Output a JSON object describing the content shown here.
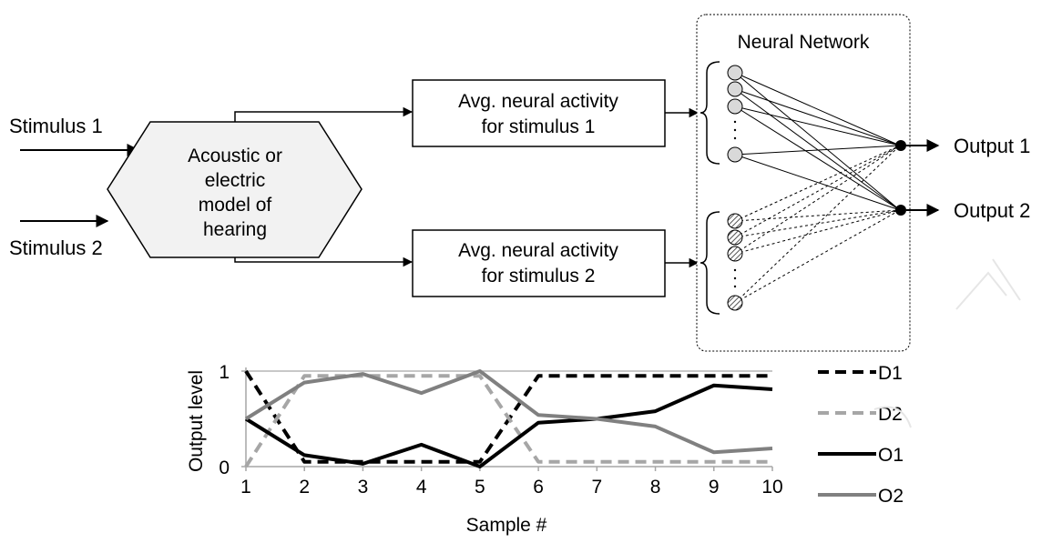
{
  "inputs": {
    "stimulus_1": "Stimulus 1",
    "stimulus_2": "Stimulus 2"
  },
  "model": {
    "lines": [
      "Acoustic or",
      "electric",
      "model of",
      "hearing"
    ]
  },
  "activity_boxes": [
    {
      "lines": [
        "Avg. neural activity",
        "for stimulus 1"
      ]
    },
    {
      "lines": [
        "Avg. neural activity",
        "for stimulus 2"
      ]
    }
  ],
  "network": {
    "title": "Neural Network",
    "group_1_fill": "#d9d9d9",
    "group_2_pattern": "hatched",
    "outputs": [
      "Output 1",
      "Output 2"
    ]
  },
  "chart_data": {
    "type": "line",
    "xlabel": "Sample #",
    "ylabel": "Output level",
    "x": [
      1,
      2,
      3,
      4,
      5,
      6,
      7,
      8,
      9,
      10
    ],
    "xlim": [
      1,
      10
    ],
    "ylim": [
      0,
      1
    ],
    "yticks": [
      0,
      1
    ],
    "grid": "horizontal line at 1",
    "legend_position": "right",
    "series": [
      {
        "name": "D1",
        "style": "dashed",
        "color": "#000000",
        "values": [
          1,
          0.05,
          0.05,
          0.05,
          0.05,
          0.95,
          0.95,
          0.95,
          0.95,
          0.95
        ]
      },
      {
        "name": "D2",
        "style": "dashed",
        "color": "#a6a6a6",
        "values": [
          0,
          0.95,
          0.95,
          0.95,
          0.95,
          0.05,
          0.05,
          0.05,
          0.05,
          0.05
        ]
      },
      {
        "name": "O1",
        "style": "solid",
        "color": "#000000",
        "values": [
          0.5,
          0.12,
          0.03,
          0.23,
          0.0,
          0.46,
          0.5,
          0.58,
          0.85,
          0.81
        ]
      },
      {
        "name": "O2",
        "style": "solid",
        "color": "#808080",
        "values": [
          0.5,
          0.88,
          0.97,
          0.77,
          1.0,
          0.54,
          0.5,
          0.42,
          0.15,
          0.19
        ]
      }
    ]
  }
}
